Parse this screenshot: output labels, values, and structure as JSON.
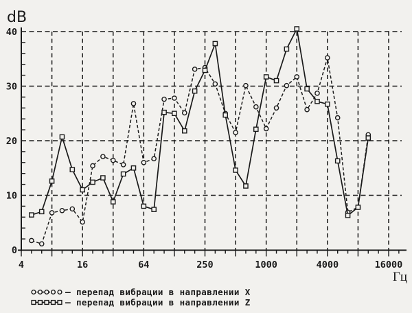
{
  "page": {
    "background": "#f2f1ee",
    "ink": "#1a1a1a"
  },
  "chart_data": {
    "type": "line",
    "title": "",
    "ylabel": "dB",
    "xlabel": "Гц",
    "x_scale": "log2-third-octave-bands",
    "x_tick_labels": [
      "4",
      "16",
      "64",
      "250",
      "1000",
      "4000",
      "16000"
    ],
    "y_ticks": [
      0,
      10,
      20,
      30,
      40
    ],
    "y_gridlines_db": [
      10,
      20,
      30,
      40
    ],
    "ylim": [
      0,
      40
    ],
    "xlim_hz": [
      4,
      16000
    ],
    "grid": "dashed; vertical at every octave, horizontal every 10 dB",
    "frequencies_hz": [
      5,
      6.3,
      8,
      10,
      12.5,
      16,
      20,
      25,
      31.5,
      40,
      50,
      63,
      80,
      100,
      125,
      160,
      200,
      250,
      315,
      400,
      500,
      630,
      800,
      1000,
      1250,
      1600,
      2000,
      2500,
      3150,
      4000,
      5000,
      6300,
      8000,
      10000
    ],
    "series": [
      {
        "id": "x",
        "name": "перепад вибрации в направлении X",
        "marker": "circle",
        "line": "dashed",
        "values": [
          1.7,
          1.1,
          6.8,
          7.2,
          7.5,
          5.1,
          15.4,
          17.1,
          16.4,
          15.6,
          26.8,
          16.0,
          16.7,
          27.6,
          27.8,
          25.1,
          33.1,
          33.4,
          30.4,
          25.0,
          21.5,
          30.1,
          26.2,
          22.2,
          26.0,
          30.1,
          31.7,
          25.7,
          28.7,
          35.2,
          24.2,
          6.9,
          7.8,
          21.1
        ]
      },
      {
        "id": "z",
        "name": "перепад вибрации в направлении Z",
        "marker": "square",
        "line": "solid",
        "values": [
          6.4,
          7.0,
          12.6,
          20.7,
          14.7,
          11.0,
          12.4,
          13.2,
          8.8,
          13.9,
          15.0,
          8.0,
          7.4,
          25.2,
          25.0,
          21.8,
          29.1,
          32.9,
          37.8,
          24.7,
          14.6,
          11.7,
          22.1,
          31.7,
          31.0,
          36.8,
          40.5,
          29.5,
          27.2,
          26.7,
          16.3,
          6.3,
          7.8,
          20.5
        ]
      }
    ]
  },
  "legend": {
    "items": [
      {
        "symbol": "circles-dashed",
        "dash": "–",
        "label": "перепад вибрации в направлении X"
      },
      {
        "symbol": "squares-solid",
        "dash": "–",
        "label": "перепад вибрации в направлении Z"
      }
    ]
  }
}
